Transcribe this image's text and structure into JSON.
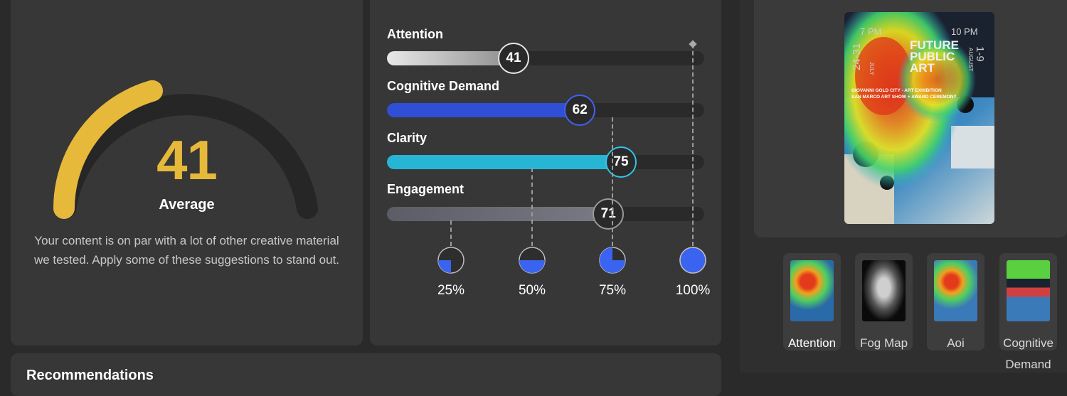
{
  "score": {
    "value": "41",
    "fraction": 0.41,
    "label": "Average",
    "description": "Your content is on par with a lot of other creative material we tested. Apply some of these suggestions to stand out.",
    "accent": "#e7b93a"
  },
  "metrics": [
    {
      "label": "Attention",
      "value": "41",
      "level": 0.41,
      "color": "#d9d9d9",
      "ring": "#e6e6e6"
    },
    {
      "label": "Cognitive Demand",
      "value": "62",
      "level": 0.62,
      "color": "#2f4fd6",
      "ring": "#3f63f0"
    },
    {
      "label": "Clarity",
      "value": "75",
      "level": 0.75,
      "color": "#27b5d6",
      "ring": "#34c4e6"
    },
    {
      "label": "Engagement",
      "value": "71",
      "level": 0.71,
      "color": "#6e6e78",
      "ring": "#9a9a9a"
    }
  ],
  "benchmarks": [
    {
      "label": "25%",
      "level": 0.25
    },
    {
      "label": "50%",
      "level": 0.5
    },
    {
      "label": "75%",
      "level": 0.75
    },
    {
      "label": "100%",
      "level": 1.0
    }
  ],
  "poster": {
    "time_start": "7 PM",
    "time_end": "10 PM",
    "dates_left": "24-31",
    "month_left": "JULY",
    "dates_right": "1-9",
    "month_right": "AUGUST",
    "title_line1": "FUTURE",
    "title_line2": "PUBLIC",
    "title_line3": "ART",
    "subtitle1": "GIOVANNI GOLD CITY - ART EXHIBITION",
    "subtitle2": "SAN MARCO ART SHOW + AWARD CEREMONY"
  },
  "views": [
    {
      "label": "Attention",
      "icon": "heatmap-thumbnail",
      "active": true
    },
    {
      "label": "Fog Map",
      "icon": "fogmap-thumbnail",
      "active": false
    },
    {
      "label": "Aoi",
      "icon": "aoi-thumbnail",
      "active": false
    },
    {
      "label": "Cognitive Demand",
      "icon": "cognitive-thumbnail",
      "active": false
    }
  ],
  "recommendations": {
    "title": "Recommendations"
  }
}
